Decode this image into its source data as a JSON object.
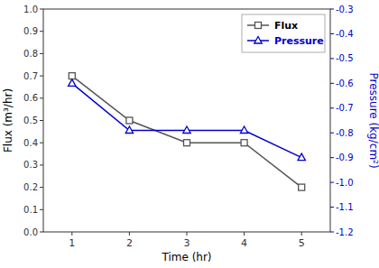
{
  "chart_data": {
    "type": "line",
    "xlabel": "Time (hr)",
    "ylabel": "Flux (m³/hr)",
    "y2label": "Pressure (kg/cm²)",
    "x": [
      1,
      2,
      3,
      4,
      5
    ],
    "series": [
      {
        "name": "Flux",
        "color": "#555555",
        "marker": "square",
        "values": [
          0.7,
          0.5,
          0.4,
          0.4,
          0.2
        ]
      },
      {
        "name": "Pressure",
        "color": "#0000cc",
        "marker": "triangle",
        "axis": "y2",
        "values": [
          -0.6,
          -0.79,
          -0.79,
          -0.79,
          -0.9
        ]
      }
    ],
    "xlim": [
      0.5,
      5.5
    ],
    "xticks": [
      1,
      2,
      3,
      4,
      5
    ],
    "ylim": [
      0.0,
      1.0
    ],
    "yticks": [
      {
        "value": 0,
        "label": "0.0"
      },
      0.1,
      0.2,
      0.3,
      0.4,
      0.5,
      0.6,
      0.7,
      0.8,
      0.9,
      {
        "value": 1,
        "label": "1.0"
      }
    ],
    "y2lim": [
      -1.2,
      -0.3
    ],
    "y2ticks": [
      -1.2,
      -1.1,
      {
        "value": -1,
        "label": "-1.0"
      },
      -0.9,
      -0.8,
      -0.7,
      -0.6,
      -0.5,
      -0.4,
      -0.3
    ],
    "grid": false,
    "legend": "upper right"
  }
}
